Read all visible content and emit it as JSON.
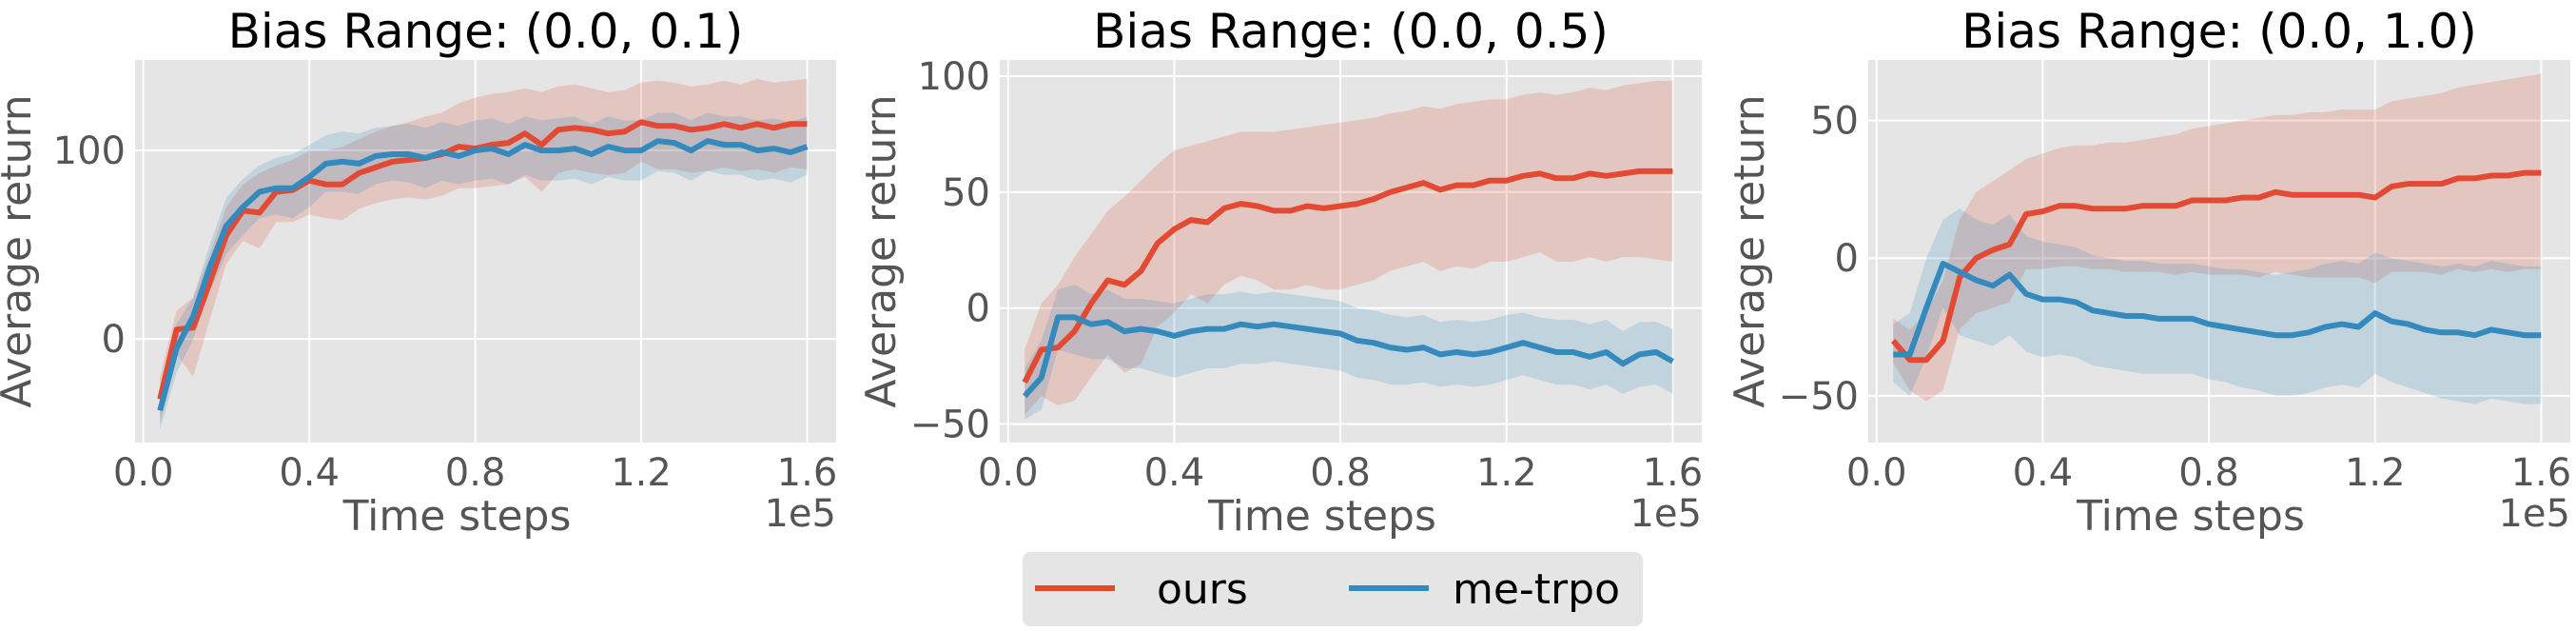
{
  "colors": {
    "ours": "#E24A33",
    "me_trpo": "#348ABD",
    "axes_bg": "#E5E5E5",
    "grid": "#FFFFFF",
    "tick_text": "#555555"
  },
  "legend": {
    "placement": "bottom-center",
    "entries": [
      "ours",
      "me-trpo"
    ]
  },
  "chart_data": [
    {
      "type": "line",
      "title": "Bias Range: (0.0, 0.1)",
      "xlabel": "Time steps",
      "ylabel": "Average return",
      "x_offset_label": "1e5",
      "xlim": [
        -0.02,
        1.67
      ],
      "ylim": [
        -55,
        148
      ],
      "xticks": [
        0.0,
        0.4,
        0.8,
        1.2,
        1.6
      ],
      "xtick_labels": [
        "0.0",
        "0.4",
        "0.8",
        "1.2",
        "1.6"
      ],
      "yticks": [
        0,
        100
      ],
      "ytick_labels": [
        "0",
        "100"
      ],
      "grid": true,
      "x": [
        0.04,
        0.08,
        0.12,
        0.16,
        0.2,
        0.24,
        0.28,
        0.32,
        0.36,
        0.4,
        0.44,
        0.48,
        0.52,
        0.56,
        0.6,
        0.64,
        0.68,
        0.72,
        0.76,
        0.8,
        0.84,
        0.88,
        0.92,
        0.96,
        1.0,
        1.04,
        1.08,
        1.12,
        1.16,
        1.2,
        1.24,
        1.28,
        1.32,
        1.36,
        1.4,
        1.44,
        1.48,
        1.52,
        1.56,
        1.6
      ],
      "series": [
        {
          "name": "ours",
          "values": [
            -32,
            5,
            6,
            30,
            55,
            68,
            67,
            78,
            79,
            84,
            82,
            82,
            88,
            91,
            94,
            95,
            96,
            98,
            102,
            101,
            103,
            104,
            109,
            103,
            111,
            112,
            111,
            109,
            110,
            115,
            113,
            113,
            111,
            112,
            114,
            112,
            114,
            112,
            114,
            114
          ],
          "upper": [
            -20,
            15,
            22,
            45,
            70,
            82,
            88,
            92,
            95,
            100,
            100,
            102,
            106,
            110,
            113,
            115,
            118,
            120,
            125,
            128,
            130,
            131,
            133,
            131,
            134,
            135,
            133,
            131,
            132,
            136,
            137,
            136,
            134,
            135,
            137,
            135,
            138,
            136,
            137,
            138
          ],
          "lower": [
            -45,
            -8,
            -20,
            10,
            40,
            52,
            48,
            62,
            62,
            66,
            64,
            63,
            69,
            72,
            74,
            75,
            74,
            76,
            80,
            80,
            81,
            82,
            86,
            78,
            88,
            90,
            88,
            87,
            88,
            94,
            90,
            90,
            88,
            89,
            91,
            89,
            90,
            88,
            91,
            90
          ]
        },
        {
          "name": "me-trpo",
          "values": [
            -38,
            -5,
            12,
            38,
            60,
            70,
            78,
            80,
            80,
            86,
            93,
            94,
            93,
            97,
            98,
            98,
            96,
            99,
            97,
            100,
            101,
            98,
            103,
            100,
            100,
            101,
            98,
            102,
            100,
            100,
            105,
            104,
            100,
            105,
            103,
            103,
            100,
            101,
            99,
            102
          ],
          "upper": [
            -26,
            8,
            22,
            50,
            75,
            85,
            92,
            96,
            98,
            103,
            108,
            110,
            109,
            112,
            113,
            114,
            112,
            115,
            113,
            116,
            117,
            114,
            118,
            116,
            117,
            118,
            114,
            118,
            116,
            116,
            120,
            120,
            116,
            120,
            118,
            118,
            116,
            117,
            115,
            118
          ],
          "lower": [
            -48,
            -18,
            0,
            25,
            45,
            55,
            64,
            66,
            64,
            70,
            78,
            78,
            77,
            82,
            84,
            83,
            80,
            84,
            82,
            84,
            85,
            82,
            87,
            84,
            84,
            85,
            82,
            86,
            84,
            84,
            89,
            88,
            84,
            89,
            87,
            87,
            84,
            85,
            83,
            87
          ]
        }
      ]
    },
    {
      "type": "line",
      "title": "Bias Range: (0.0, 0.5)",
      "xlabel": "Time steps",
      "ylabel": "Average return",
      "x_offset_label": "1e5",
      "xlim": [
        -0.02,
        1.67
      ],
      "ylim": [
        -58,
        107
      ],
      "xticks": [
        0.0,
        0.4,
        0.8,
        1.2,
        1.6
      ],
      "xtick_labels": [
        "0.0",
        "0.4",
        "0.8",
        "1.2",
        "1.6"
      ],
      "yticks": [
        -50,
        0,
        50,
        100
      ],
      "ytick_labels": [
        "−50",
        "0",
        "50",
        "100"
      ],
      "grid": true,
      "x": [
        0.04,
        0.08,
        0.12,
        0.16,
        0.2,
        0.24,
        0.28,
        0.32,
        0.36,
        0.4,
        0.44,
        0.48,
        0.52,
        0.56,
        0.6,
        0.64,
        0.68,
        0.72,
        0.76,
        0.8,
        0.84,
        0.88,
        0.92,
        0.96,
        1.0,
        1.04,
        1.08,
        1.12,
        1.16,
        1.2,
        1.24,
        1.28,
        1.32,
        1.36,
        1.4,
        1.44,
        1.48,
        1.52,
        1.56,
        1.6
      ],
      "series": [
        {
          "name": "ours",
          "values": [
            -32,
            -18,
            -17,
            -10,
            2,
            12,
            10,
            16,
            28,
            34,
            38,
            37,
            43,
            45,
            44,
            42,
            42,
            44,
            43,
            44,
            45,
            47,
            50,
            52,
            54,
            51,
            53,
            53,
            55,
            55,
            57,
            58,
            56,
            56,
            58,
            57,
            58,
            59,
            59,
            59
          ],
          "upper": [
            -18,
            2,
            10,
            22,
            32,
            42,
            48,
            55,
            62,
            68,
            70,
            72,
            74,
            76,
            76,
            76,
            77,
            78,
            79,
            80,
            81,
            82,
            84,
            85,
            87,
            86,
            88,
            89,
            90,
            90,
            92,
            93,
            92,
            93,
            95,
            94,
            96,
            97,
            98,
            98
          ],
          "lower": [
            -46,
            -38,
            -42,
            -40,
            -30,
            -20,
            -28,
            -24,
            -8,
            -2,
            6,
            2,
            10,
            14,
            12,
            8,
            8,
            10,
            8,
            8,
            10,
            12,
            16,
            18,
            20,
            16,
            18,
            17,
            20,
            20,
            22,
            24,
            20,
            20,
            22,
            20,
            22,
            22,
            21,
            20
          ]
        },
        {
          "name": "me-trpo",
          "values": [
            -38,
            -30,
            -4,
            -4,
            -7,
            -6,
            -10,
            -9,
            -10,
            -12,
            -10,
            -9,
            -9,
            -7,
            -8,
            -7,
            -8,
            -9,
            -10,
            -11,
            -14,
            -15,
            -17,
            -18,
            -17,
            -20,
            -19,
            -20,
            -19,
            -17,
            -15,
            -17,
            -19,
            -19,
            -21,
            -19,
            -24,
            -20,
            -19,
            -23
          ],
          "upper": [
            -26,
            -14,
            8,
            10,
            6,
            8,
            4,
            4,
            3,
            2,
            4,
            6,
            6,
            7,
            6,
            7,
            6,
            5,
            4,
            3,
            0,
            -1,
            -3,
            -4,
            -3,
            -6,
            -5,
            -6,
            -5,
            -3,
            -2,
            -4,
            -5,
            -5,
            -7,
            -5,
            -10,
            -6,
            -6,
            -9
          ],
          "lower": [
            -48,
            -44,
            -18,
            -20,
            -22,
            -22,
            -26,
            -26,
            -28,
            -30,
            -28,
            -26,
            -26,
            -24,
            -24,
            -23,
            -24,
            -25,
            -26,
            -27,
            -30,
            -31,
            -33,
            -33,
            -32,
            -34,
            -33,
            -34,
            -33,
            -31,
            -29,
            -31,
            -33,
            -33,
            -35,
            -33,
            -37,
            -34,
            -33,
            -37
          ]
        }
      ]
    },
    {
      "type": "line",
      "title": "Bias Range: (0.0, 1.0)",
      "xlabel": "Time steps",
      "ylabel": "Average return",
      "x_offset_label": "1e5",
      "xlim": [
        -0.02,
        1.67
      ],
      "ylim": [
        -67,
        72
      ],
      "xticks": [
        0.0,
        0.4,
        0.8,
        1.2,
        1.6
      ],
      "xtick_labels": [
        "0.0",
        "0.4",
        "0.8",
        "1.2",
        "1.6"
      ],
      "yticks": [
        -50,
        0,
        50
      ],
      "ytick_labels": [
        "−50",
        "0",
        "50"
      ],
      "grid": true,
      "x": [
        0.04,
        0.08,
        0.12,
        0.16,
        0.2,
        0.24,
        0.28,
        0.32,
        0.36,
        0.4,
        0.44,
        0.48,
        0.52,
        0.56,
        0.6,
        0.64,
        0.68,
        0.72,
        0.76,
        0.8,
        0.84,
        0.88,
        0.92,
        0.96,
        1.0,
        1.04,
        1.08,
        1.12,
        1.16,
        1.2,
        1.24,
        1.28,
        1.32,
        1.36,
        1.4,
        1.44,
        1.48,
        1.52,
        1.56,
        1.6
      ],
      "series": [
        {
          "name": "ours",
          "values": [
            -30,
            -37,
            -37,
            -30,
            -7,
            0,
            3,
            5,
            16,
            17,
            19,
            19,
            18,
            18,
            18,
            19,
            19,
            19,
            21,
            21,
            21,
            22,
            22,
            24,
            23,
            23,
            23,
            23,
            23,
            22,
            26,
            27,
            27,
            27,
            29,
            29,
            30,
            30,
            31,
            31
          ],
          "upper": [
            -22,
            -26,
            -20,
            -8,
            14,
            24,
            28,
            32,
            36,
            38,
            40,
            41,
            41,
            42,
            42,
            43,
            44,
            45,
            47,
            48,
            49,
            50,
            51,
            52,
            52,
            53,
            53,
            54,
            54,
            54,
            57,
            58,
            59,
            60,
            62,
            63,
            64,
            65,
            66,
            67
          ],
          "lower": [
            -38,
            -48,
            -52,
            -48,
            -26,
            -20,
            -18,
            -16,
            -4,
            -4,
            -3,
            -3,
            -4,
            -4,
            -5,
            -5,
            -5,
            -6,
            -5,
            -6,
            -6,
            -6,
            -7,
            -5,
            -6,
            -7,
            -7,
            -7,
            -7,
            -9,
            -5,
            -5,
            -5,
            -6,
            -4,
            -5,
            -4,
            -5,
            -4,
            -4
          ]
        },
        {
          "name": "me-trpo",
          "values": [
            -35,
            -35,
            -18,
            -2,
            -5,
            -8,
            -10,
            -6,
            -13,
            -15,
            -15,
            -16,
            -19,
            -20,
            -21,
            -21,
            -22,
            -22,
            -22,
            -24,
            -25,
            -26,
            -27,
            -28,
            -28,
            -27,
            -25,
            -24,
            -25,
            -20,
            -23,
            -24,
            -26,
            -27,
            -27,
            -28,
            -26,
            -27,
            -28,
            -28
          ],
          "upper": [
            -24,
            -20,
            0,
            14,
            18,
            14,
            12,
            16,
            8,
            6,
            5,
            4,
            1,
            0,
            -1,
            -1,
            -2,
            -2,
            -2,
            -3,
            -4,
            -4,
            -5,
            -6,
            -5,
            -4,
            -2,
            -1,
            -2,
            2,
            0,
            -1,
            -2,
            -3,
            -2,
            -3,
            -1,
            -2,
            -3,
            -3
          ],
          "lower": [
            -45,
            -50,
            -36,
            -18,
            -28,
            -30,
            -32,
            -28,
            -34,
            -36,
            -35,
            -36,
            -39,
            -40,
            -41,
            -42,
            -42,
            -42,
            -42,
            -44,
            -45,
            -47,
            -48,
            -50,
            -50,
            -49,
            -47,
            -46,
            -47,
            -42,
            -45,
            -47,
            -49,
            -51,
            -52,
            -53,
            -51,
            -52,
            -53,
            -53
          ]
        }
      ]
    }
  ]
}
